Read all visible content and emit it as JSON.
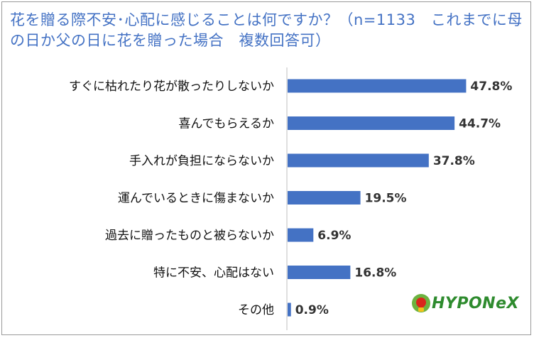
{
  "title": "花を贈る際不安･心配に感じることは何ですか？（n=1133　これまでに母の日か父の日に花を贈った場合　複数回答可）",
  "logo_text": "HYPONeX",
  "colors": {
    "bar": "#4472c4",
    "title": "#4472c4",
    "axis": "#bfbfbf"
  },
  "chart_data": {
    "type": "bar",
    "orientation": "horizontal",
    "categories": [
      "すぐに枯れたり花が散ったりしないか",
      "喜んでもらえるか",
      "手入れが負担にならないか",
      "運んでいるときに傷まないか",
      "過去に贈ったものと被らないか",
      "特に不安、心配はない",
      "その他"
    ],
    "values": [
      47.8,
      44.7,
      37.8,
      19.5,
      6.9,
      16.8,
      0.9
    ],
    "data_labels": [
      "47.8%",
      "44.7%",
      "37.8%",
      "19.5%",
      "6.9%",
      "16.8%",
      "0.9%"
    ],
    "unit": "%",
    "xlim": [
      0,
      50
    ],
    "grid": false,
    "legend": "none"
  }
}
